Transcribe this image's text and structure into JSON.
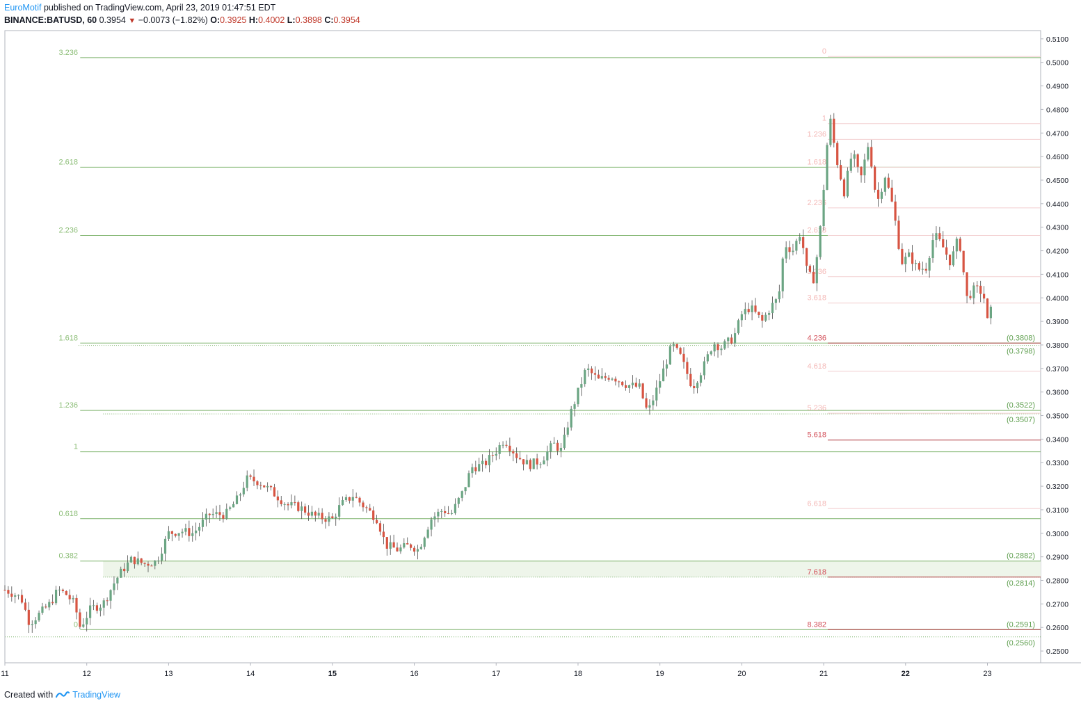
{
  "header": {
    "author": "EuroMotif",
    "published_text": "published on TradingView.com, April 23, 2019 01:47:51 EDT",
    "symbol": "BINANCE:BATUSD, 60",
    "last": "0.3954",
    "change": "−0.0073 (−1.82%)",
    "o_label": "O:",
    "o": "0.3925",
    "h_label": "H:",
    "h": "0.4002",
    "l_label": "L:",
    "l": "0.3898",
    "c_label": "C:",
    "c": "0.3954"
  },
  "footer": {
    "created_with": "Created with",
    "brand": "TradingView"
  },
  "colors": {
    "up": "#6ba583",
    "down": "#d75442",
    "grid_fib": "#7cb26a",
    "fib_label": "#8bbd76",
    "pink": "#f4b9b7",
    "red_label": "#d24d57",
    "price_tag": "#5f9f4f",
    "axis_text": "#131722"
  },
  "chart_data": {
    "type": "candlestick",
    "ylim": [
      0.245,
      0.5135
    ],
    "xlim": [
      11,
      23.65
    ],
    "y_ticks": [
      "0.5100",
      "0.5000",
      "0.4900",
      "0.4800",
      "0.4700",
      "0.4600",
      "0.4500",
      "0.4400",
      "0.4300",
      "0.4200",
      "0.4100",
      "0.4000",
      "0.3900",
      "0.3800",
      "0.3700",
      "0.3600",
      "0.3500",
      "0.3400",
      "0.3300",
      "0.3200",
      "0.3100",
      "0.3000",
      "0.2900",
      "0.2800",
      "0.2700",
      "0.2600",
      "0.2500"
    ],
    "x_ticks": [
      {
        "label": "11",
        "x": 11
      },
      {
        "label": "12",
        "x": 12
      },
      {
        "label": "13",
        "x": 13
      },
      {
        "label": "14",
        "x": 14
      },
      {
        "label": "15",
        "x": 15,
        "bold": true
      },
      {
        "label": "16",
        "x": 16
      },
      {
        "label": "17",
        "x": 17
      },
      {
        "label": "18",
        "x": 18
      },
      {
        "label": "19",
        "x": 19
      },
      {
        "label": "20",
        "x": 20
      },
      {
        "label": "21",
        "x": 21
      },
      {
        "label": "22",
        "x": 22,
        "bold": true
      },
      {
        "label": "23",
        "x": 23
      }
    ],
    "fib_left": {
      "x_start": 11.92,
      "levels": [
        {
          "label": "0",
          "price": 0.2591
        },
        {
          "label": "0.382",
          "price": 0.2882
        },
        {
          "label": "0.618",
          "price": 0.3062
        },
        {
          "label": "1",
          "price": 0.3346
        },
        {
          "label": "1.236",
          "price": 0.3522
        },
        {
          "label": "1.618",
          "price": 0.3808
        },
        {
          "label": "2.236",
          "price": 0.4265
        },
        {
          "label": "2.618",
          "price": 0.4555
        },
        {
          "label": "3.236",
          "price": 0.502
        }
      ]
    },
    "fib_left_dotted": [
      {
        "price": 0.256,
        "x_start": 11.0
      },
      {
        "price": 0.2814,
        "x_start": 12.2
      },
      {
        "price": 0.3507,
        "x_start": 12.2
      },
      {
        "price": 0.3798,
        "x_start": 11.9
      }
    ],
    "fib_left_band": {
      "from": 0.2814,
      "to": 0.2882,
      "x_start": 12.2
    },
    "fib_right": {
      "x_start": 21.05,
      "levels": [
        {
          "label": "0",
          "price": 0.5025,
          "style": "pink"
        },
        {
          "label": "1",
          "price": 0.474,
          "style": "pink"
        },
        {
          "label": "1.236",
          "price": 0.4673,
          "style": "pink"
        },
        {
          "label": "1.618",
          "price": 0.4555,
          "style": "pink"
        },
        {
          "label": "2.236",
          "price": 0.4382,
          "style": "pink"
        },
        {
          "label": "2.618",
          "price": 0.4265,
          "style": "pink"
        },
        {
          "label": "3.236",
          "price": 0.409,
          "style": "pink"
        },
        {
          "label": "3.618",
          "price": 0.3978,
          "style": "pink"
        },
        {
          "label": "4.236",
          "price": 0.3808,
          "style": "red"
        },
        {
          "label": "4.618",
          "price": 0.3688,
          "style": "pink"
        },
        {
          "label": "5.236",
          "price": 0.351,
          "style": "pink"
        },
        {
          "label": "5.618",
          "price": 0.3396,
          "style": "red"
        },
        {
          "label": "6.618",
          "price": 0.3105,
          "style": "pink"
        },
        {
          "label": "7.618",
          "price": 0.2814,
          "style": "red"
        },
        {
          "label": "8.382",
          "price": 0.2591,
          "style": "red"
        }
      ]
    },
    "price_tags": [
      {
        "label": "(0.3808)",
        "price": 0.3808
      },
      {
        "label": "(0.3798)",
        "price": 0.3798
      },
      {
        "label": "(0.3522)",
        "price": 0.3522
      },
      {
        "label": "(0.3507)",
        "price": 0.3507
      },
      {
        "label": "(0.2882)",
        "price": 0.2882
      },
      {
        "label": "(0.2814)",
        "price": 0.2814
      },
      {
        "label": "(0.2591)",
        "price": 0.2591
      },
      {
        "label": "(0.2560)",
        "price": 0.256
      }
    ],
    "anchors": [
      [
        11.0,
        0.276
      ],
      [
        11.1,
        0.2745
      ],
      [
        11.2,
        0.2725
      ],
      [
        11.3,
        0.262
      ],
      [
        11.4,
        0.265
      ],
      [
        11.55,
        0.27
      ],
      [
        11.65,
        0.276
      ],
      [
        11.75,
        0.274
      ],
      [
        11.85,
        0.27
      ],
      [
        11.92,
        0.26
      ],
      [
        12.05,
        0.268
      ],
      [
        12.2,
        0.27
      ],
      [
        12.35,
        0.28
      ],
      [
        12.45,
        0.285
      ],
      [
        12.55,
        0.289
      ],
      [
        12.7,
        0.287
      ],
      [
        12.85,
        0.288
      ],
      [
        13.0,
        0.3
      ],
      [
        13.15,
        0.301
      ],
      [
        13.3,
        0.3
      ],
      [
        13.5,
        0.308
      ],
      [
        13.7,
        0.308
      ],
      [
        13.85,
        0.315
      ],
      [
        13.95,
        0.323
      ],
      [
        14.1,
        0.322
      ],
      [
        14.25,
        0.318
      ],
      [
        14.45,
        0.312
      ],
      [
        14.6,
        0.311
      ],
      [
        14.8,
        0.307
      ],
      [
        15.0,
        0.306
      ],
      [
        15.1,
        0.312
      ],
      [
        15.25,
        0.316
      ],
      [
        15.4,
        0.311
      ],
      [
        15.55,
        0.306
      ],
      [
        15.65,
        0.295
      ],
      [
        15.8,
        0.293
      ],
      [
        15.95,
        0.295
      ],
      [
        16.05,
        0.293
      ],
      [
        16.2,
        0.306
      ],
      [
        16.35,
        0.31
      ],
      [
        16.45,
        0.308
      ],
      [
        16.6,
        0.318
      ],
      [
        16.7,
        0.328
      ],
      [
        16.85,
        0.329
      ],
      [
        17.0,
        0.335
      ],
      [
        17.1,
        0.34
      ],
      [
        17.25,
        0.333
      ],
      [
        17.4,
        0.329
      ],
      [
        17.55,
        0.331
      ],
      [
        17.7,
        0.338
      ],
      [
        17.8,
        0.335
      ],
      [
        17.9,
        0.35
      ],
      [
        17.98,
        0.358
      ],
      [
        18.1,
        0.37
      ],
      [
        18.25,
        0.365
      ],
      [
        18.4,
        0.367
      ],
      [
        18.6,
        0.363
      ],
      [
        18.75,
        0.362
      ],
      [
        18.85,
        0.351
      ],
      [
        18.95,
        0.36
      ],
      [
        19.05,
        0.37
      ],
      [
        19.15,
        0.38
      ],
      [
        19.25,
        0.375
      ],
      [
        19.4,
        0.362
      ],
      [
        19.55,
        0.372
      ],
      [
        19.65,
        0.381
      ],
      [
        19.75,
        0.379
      ],
      [
        19.9,
        0.383
      ],
      [
        20.0,
        0.393
      ],
      [
        20.1,
        0.396
      ],
      [
        20.25,
        0.39
      ],
      [
        20.35,
        0.396
      ],
      [
        20.45,
        0.4
      ],
      [
        20.52,
        0.423
      ],
      [
        20.62,
        0.42
      ],
      [
        20.72,
        0.428
      ],
      [
        20.8,
        0.41
      ],
      [
        20.88,
        0.408
      ],
      [
        20.95,
        0.426
      ],
      [
        21.02,
        0.455
      ],
      [
        21.07,
        0.478
      ],
      [
        21.15,
        0.46
      ],
      [
        21.25,
        0.445
      ],
      [
        21.35,
        0.462
      ],
      [
        21.45,
        0.45
      ],
      [
        21.55,
        0.466
      ],
      [
        21.65,
        0.44
      ],
      [
        21.75,
        0.452
      ],
      [
        21.85,
        0.438
      ],
      [
        21.95,
        0.415
      ],
      [
        22.05,
        0.418
      ],
      [
        22.15,
        0.412
      ],
      [
        22.25,
        0.413
      ],
      [
        22.35,
        0.427
      ],
      [
        22.45,
        0.422
      ],
      [
        22.55,
        0.415
      ],
      [
        22.65,
        0.426
      ],
      [
        22.75,
        0.4
      ],
      [
        22.85,
        0.404
      ],
      [
        22.95,
        0.402
      ],
      [
        23.0,
        0.39
      ],
      [
        23.05,
        0.3954
      ]
    ]
  }
}
